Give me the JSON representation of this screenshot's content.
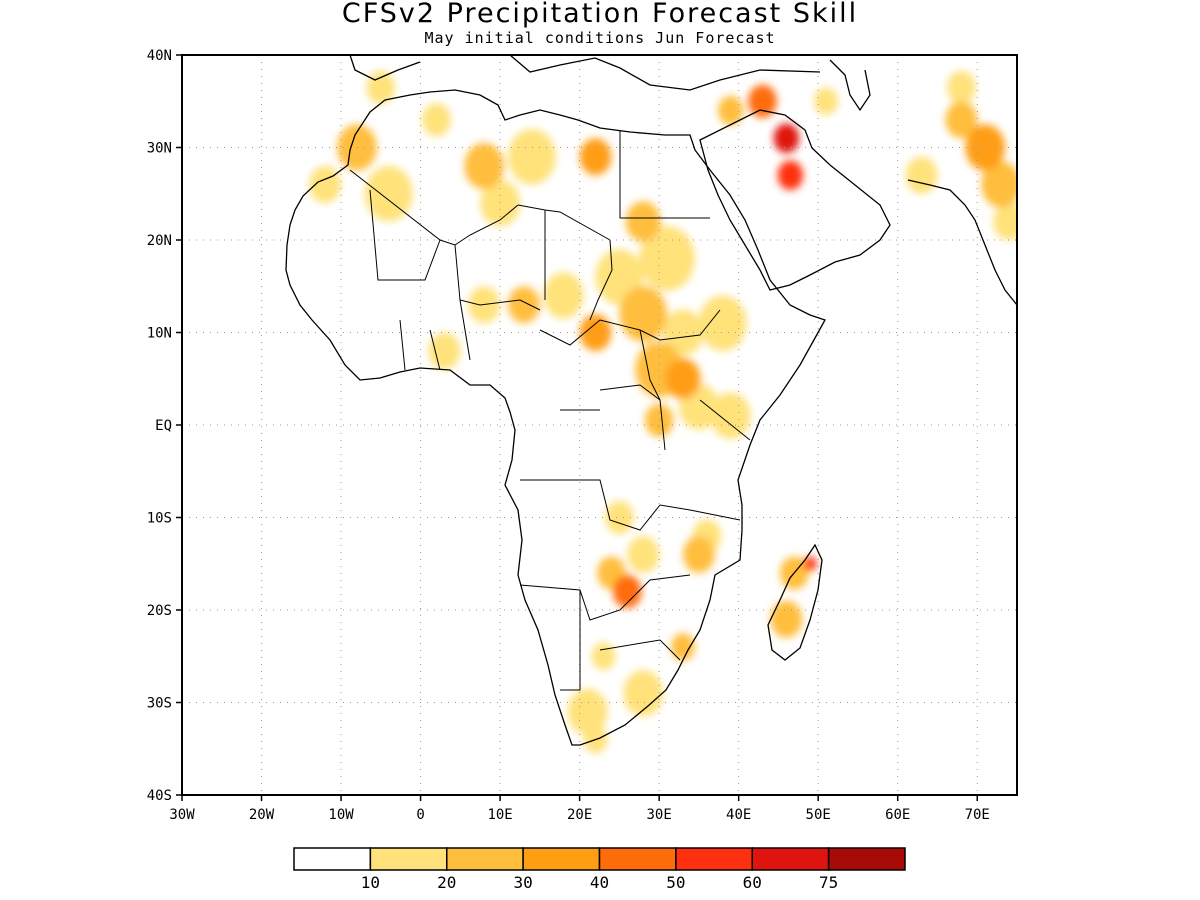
{
  "title": "CFSv2 Precipitation Forecast Skill",
  "subtitle": "May initial conditions  Jun Forecast",
  "map": {
    "lon_range": [
      -30,
      75
    ],
    "lat_range": [
      -40,
      40
    ],
    "grid": "dotted",
    "lat_labels": [
      {
        "lat": 40,
        "label": "40N"
      },
      {
        "lat": 30,
        "label": "30N"
      },
      {
        "lat": 20,
        "label": "20N"
      },
      {
        "lat": 10,
        "label": "10N"
      },
      {
        "lat": 0,
        "label": "EQ"
      },
      {
        "lat": -10,
        "label": "10S"
      },
      {
        "lat": -20,
        "label": "20S"
      },
      {
        "lat": -30,
        "label": "30S"
      },
      {
        "lat": -40,
        "label": "40S"
      }
    ],
    "lon_labels": [
      {
        "lon": -30,
        "label": "30W"
      },
      {
        "lon": -20,
        "label": "20W"
      },
      {
        "lon": -10,
        "label": "10W"
      },
      {
        "lon": 0,
        "label": "0"
      },
      {
        "lon": 10,
        "label": "10E"
      },
      {
        "lon": 20,
        "label": "20E"
      },
      {
        "lon": 30,
        "label": "30E"
      },
      {
        "lon": 40,
        "label": "40E"
      },
      {
        "lon": 50,
        "label": "50E"
      },
      {
        "lon": 60,
        "label": "60E"
      },
      {
        "lon": 70,
        "label": "70E"
      }
    ]
  },
  "colorbar": {
    "colors": [
      "#ffffff",
      "#ffe27a",
      "#ffbe3c",
      "#ff9e12",
      "#ff6c0a",
      "#ff3010",
      "#e0140e",
      "#a80a06"
    ],
    "labels": [
      "10",
      "20",
      "30",
      "40",
      "50",
      "60",
      "75"
    ]
  },
  "skill_patches": [
    {
      "lon": -4,
      "lat": 25,
      "r": 3.0,
      "level": 1
    },
    {
      "lon": -8,
      "lat": 30,
      "r": 2.5,
      "level": 2
    },
    {
      "lon": -12,
      "lat": 26,
      "r": 2.0,
      "level": 1
    },
    {
      "lon": -5,
      "lat": 36.5,
      "r": 1.8,
      "level": 1
    },
    {
      "lon": 2,
      "lat": 33,
      "r": 1.8,
      "level": 1
    },
    {
      "lon": 8,
      "lat": 28,
      "r": 2.5,
      "level": 2
    },
    {
      "lon": 10,
      "lat": 24,
      "r": 2.5,
      "level": 1
    },
    {
      "lon": 14,
      "lat": 29,
      "r": 3.0,
      "level": 1
    },
    {
      "lon": 22,
      "lat": 29,
      "r": 2.0,
      "level": 3
    },
    {
      "lon": 28,
      "lat": 22,
      "r": 2.2,
      "level": 2
    },
    {
      "lon": 31,
      "lat": 18,
      "r": 3.5,
      "level": 1
    },
    {
      "lon": 25,
      "lat": 16,
      "r": 3.0,
      "level": 1
    },
    {
      "lon": 18,
      "lat": 14,
      "r": 2.5,
      "level": 1
    },
    {
      "lon": 8,
      "lat": 13,
      "r": 2.0,
      "level": 1
    },
    {
      "lon": 13,
      "lat": 13,
      "r": 2.0,
      "level": 2
    },
    {
      "lon": 28,
      "lat": 12,
      "r": 3.0,
      "level": 2
    },
    {
      "lon": 22,
      "lat": 10,
      "r": 2.0,
      "level": 3
    },
    {
      "lon": 33,
      "lat": 10,
      "r": 2.5,
      "level": 1
    },
    {
      "lon": 38,
      "lat": 11,
      "r": 3.0,
      "level": 1
    },
    {
      "lon": 30,
      "lat": 6,
      "r": 3.0,
      "level": 2
    },
    {
      "lon": 33,
      "lat": 5,
      "r": 2.2,
      "level": 3
    },
    {
      "lon": 35,
      "lat": 2,
      "r": 2.5,
      "level": 1
    },
    {
      "lon": 39,
      "lat": 1,
      "r": 2.5,
      "level": 1
    },
    {
      "lon": 30,
      "lat": 0.5,
      "r": 1.8,
      "level": 2
    },
    {
      "lon": 3,
      "lat": 8,
      "r": 2.0,
      "level": 1
    },
    {
      "lon": 46,
      "lat": 31,
      "r": 1.6,
      "level": 6
    },
    {
      "lon": 46.5,
      "lat": 27,
      "r": 1.6,
      "level": 5
    },
    {
      "lon": 43,
      "lat": 35,
      "r": 1.8,
      "level": 4
    },
    {
      "lon": 39,
      "lat": 34,
      "r": 1.6,
      "level": 2
    },
    {
      "lon": 51,
      "lat": 35,
      "r": 1.5,
      "level": 1
    },
    {
      "lon": 68,
      "lat": 33,
      "r": 2.0,
      "level": 2
    },
    {
      "lon": 71,
      "lat": 30,
      "r": 2.5,
      "level": 3
    },
    {
      "lon": 73,
      "lat": 26,
      "r": 2.5,
      "level": 2
    },
    {
      "lon": 74,
      "lat": 22,
      "r": 2.0,
      "level": 1
    },
    {
      "lon": 63,
      "lat": 27,
      "r": 2.0,
      "level": 1
    },
    {
      "lon": 68,
      "lat": 36.5,
      "r": 1.8,
      "level": 1
    },
    {
      "lon": 25,
      "lat": -10,
      "r": 1.8,
      "level": 1
    },
    {
      "lon": 28,
      "lat": -14,
      "r": 2.0,
      "level": 1
    },
    {
      "lon": 26,
      "lat": -18,
      "r": 1.8,
      "level": 4
    },
    {
      "lon": 24,
      "lat": -16,
      "r": 1.8,
      "level": 2
    },
    {
      "lon": 35,
      "lat": -14,
      "r": 2.0,
      "level": 2
    },
    {
      "lon": 36,
      "lat": -12,
      "r": 1.8,
      "level": 1
    },
    {
      "lon": 47,
      "lat": -16,
      "r": 1.8,
      "level": 2
    },
    {
      "lon": 46,
      "lat": -21,
      "r": 2.0,
      "level": 2
    },
    {
      "lon": 49,
      "lat": -15,
      "r": 0.8,
      "level": 5
    },
    {
      "lon": 33,
      "lat": -24,
      "r": 1.5,
      "level": 2
    },
    {
      "lon": 28,
      "lat": -29,
      "r": 2.5,
      "level": 1
    },
    {
      "lon": 21,
      "lat": -31,
      "r": 2.5,
      "level": 1
    },
    {
      "lon": 22,
      "lat": -34,
      "r": 1.5,
      "level": 1
    },
    {
      "lon": 23,
      "lat": -25,
      "r": 1.5,
      "level": 1
    }
  ]
}
